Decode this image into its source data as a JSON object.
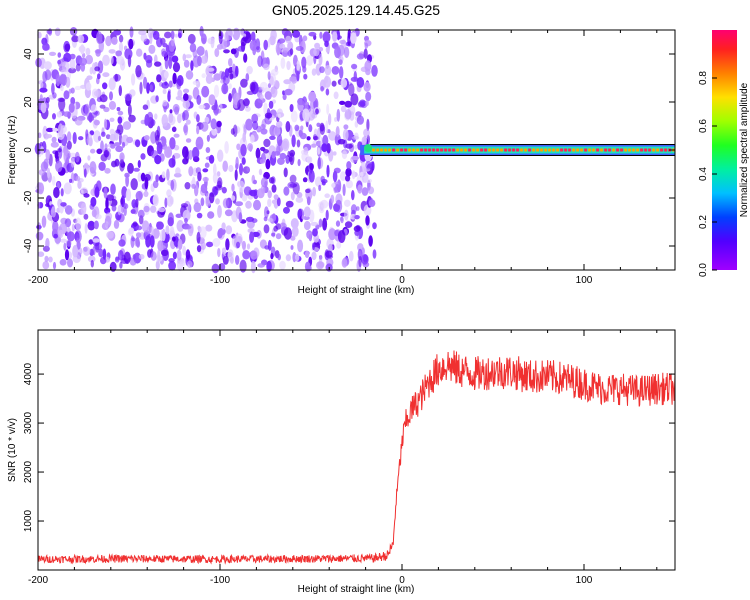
{
  "title": "GN05.2025.129.14.45.G25",
  "colors": {
    "snr_line": "#f03030",
    "frame": "#000000",
    "colorbar": [
      "#9400ff",
      "#3000ff",
      "#0080ff",
      "#00e0e0",
      "#00ff40",
      "#c0ff00",
      "#ffc000",
      "#ff4000",
      "#ff0060"
    ]
  },
  "chart_data": [
    {
      "type": "heatmap",
      "title": "",
      "xlabel": "Height of straight line (km)",
      "ylabel": "Frequency (Hz)",
      "xlim": [
        -200,
        150
      ],
      "ylim": [
        -50,
        50
      ],
      "x_ticks": [
        -200,
        -100,
        0,
        100
      ],
      "y_ticks": [
        -40,
        -20,
        0,
        20,
        40
      ],
      "noise_region_x": [
        -200,
        -15
      ],
      "signal_band_x": [
        -23,
        150
      ],
      "signal_frequency_hz": 0,
      "colorbar": {
        "label": "Normalized spectral amplitude",
        "range": [
          0.0,
          1.0
        ],
        "ticks": [
          "0.0",
          "0.2",
          "0.4",
          "0.6",
          "0.8"
        ]
      }
    },
    {
      "type": "line",
      "title": "",
      "xlabel": "Height of straight line (km)",
      "ylabel": "SNR (10 * v/v)",
      "xlim": [
        -200,
        150
      ],
      "ylim": [
        0,
        4900
      ],
      "x_ticks": [
        -200,
        -100,
        0,
        100
      ],
      "y_ticks": [
        1000,
        2000,
        3000,
        4000
      ],
      "series": [
        {
          "x": [
            -200,
            -150,
            -100,
            -50,
            -15,
            -8,
            -5,
            -3,
            0,
            2,
            5,
            10,
            15,
            20,
            25,
            30,
            40,
            50,
            60,
            70,
            80,
            90,
            100,
            110,
            120,
            130,
            140,
            150
          ],
          "y": [
            220,
            230,
            220,
            230,
            240,
            300,
            500,
            1500,
            2600,
            3000,
            3250,
            3500,
            3850,
            4100,
            4200,
            4100,
            4000,
            4050,
            4050,
            3950,
            3950,
            3900,
            3800,
            3700,
            3700,
            3650,
            3700,
            3700
          ]
        }
      ]
    }
  ]
}
